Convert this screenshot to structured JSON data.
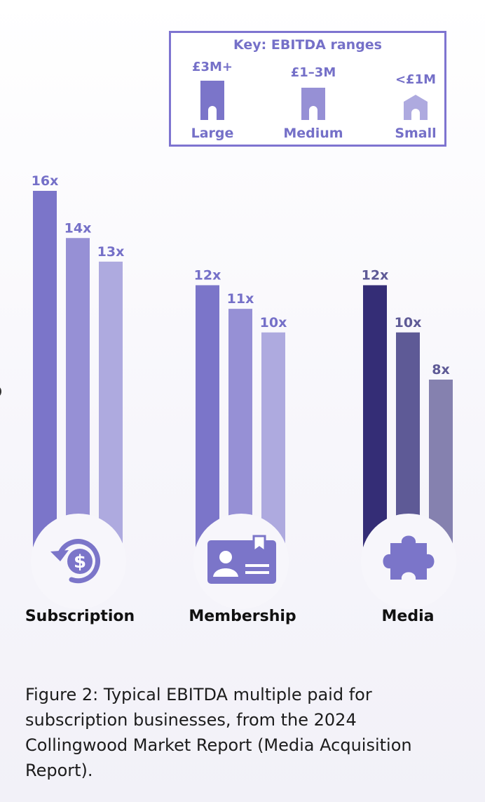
{
  "chart_data": {
    "type": "bar",
    "title": "",
    "xlabel": "",
    "ylabel": "",
    "ylim": [
      0,
      16
    ],
    "categories": [
      "Subscription",
      "Membership",
      "Media"
    ],
    "series": [
      {
        "name": "Large",
        "range": "£3M+",
        "values": [
          16,
          12,
          12
        ],
        "labels": [
          "16x",
          "12x",
          "12x"
        ]
      },
      {
        "name": "Medium",
        "range": "£1–3M",
        "values": [
          14,
          11,
          10
        ],
        "labels": [
          "14x",
          "11x",
          "10x"
        ]
      },
      {
        "name": "Small",
        "range": "<£1M",
        "values": [
          13,
          10,
          8
        ],
        "labels": [
          "13x",
          "10x",
          "8x"
        ]
      }
    ],
    "legend": {
      "title": "Key: EBITDA ranges",
      "position": "top-right"
    },
    "category_icons": [
      "dollar-refresh-icon",
      "id-card-icon",
      "puzzle-piece-icon"
    ]
  },
  "colors": {
    "large": "#7b75c9",
    "medium": "#9690d5",
    "small": "#aeaadf",
    "media_large": "#342d76",
    "media_medium": "#5e5a96",
    "media_small": "#8581af",
    "icon": "#7b75c9",
    "accent": "#7570c8"
  },
  "caption": "Figure 2: Typical EBITDA multiple paid for subscription businesses, from the 2024 Collingwood Market Report (Media Acquisition Report)."
}
